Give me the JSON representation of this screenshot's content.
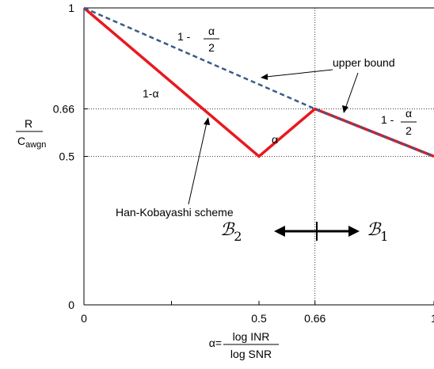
{
  "chart_data": {
    "type": "line",
    "xlim": [
      0,
      1
    ],
    "ylim": [
      0,
      1
    ],
    "grid": false,
    "x_ticks": [
      {
        "value": 0,
        "label": "0"
      },
      {
        "value": 0.5,
        "label": "0.5"
      },
      {
        "value": 0.66,
        "label": "0.66"
      },
      {
        "value": 1,
        "label": "1"
      }
    ],
    "y_ticks": [
      {
        "value": 0,
        "label": "0"
      },
      {
        "value": 0.5,
        "label": "0.5"
      },
      {
        "value": 0.66,
        "label": "0.66"
      },
      {
        "value": 1,
        "label": "1"
      }
    ],
    "reference_lines": {
      "horizontal": [
        0.66,
        0.5
      ],
      "vertical": [
        0.66
      ]
    },
    "ylabel": {
      "num": "R",
      "den_main": "C",
      "den_sub": "awgn"
    },
    "xlabel": {
      "prefix": "α=",
      "num": "log INR",
      "den": "log SNR"
    },
    "series": [
      {
        "name": "upper bound",
        "style": "dashed",
        "color": "#3b5a8a",
        "x": [
          0,
          0.66,
          1
        ],
        "y": [
          1,
          0.66,
          0.5
        ]
      },
      {
        "name": "Han-Kobayashi scheme",
        "style": "solid",
        "color": "#e8191f",
        "x": [
          0,
          0.5,
          0.66,
          1
        ],
        "y": [
          1,
          0.5,
          0.66,
          0.5
        ]
      }
    ],
    "annotations": {
      "seg_left": "1-α",
      "seg_mid": "α",
      "frac_prefix": "1 -",
      "frac_num": "α",
      "frac_den": "2",
      "region_left_main": "ℬ",
      "region_left_sub": "2",
      "region_right_main": "ℬ",
      "region_right_sub": "1"
    }
  }
}
